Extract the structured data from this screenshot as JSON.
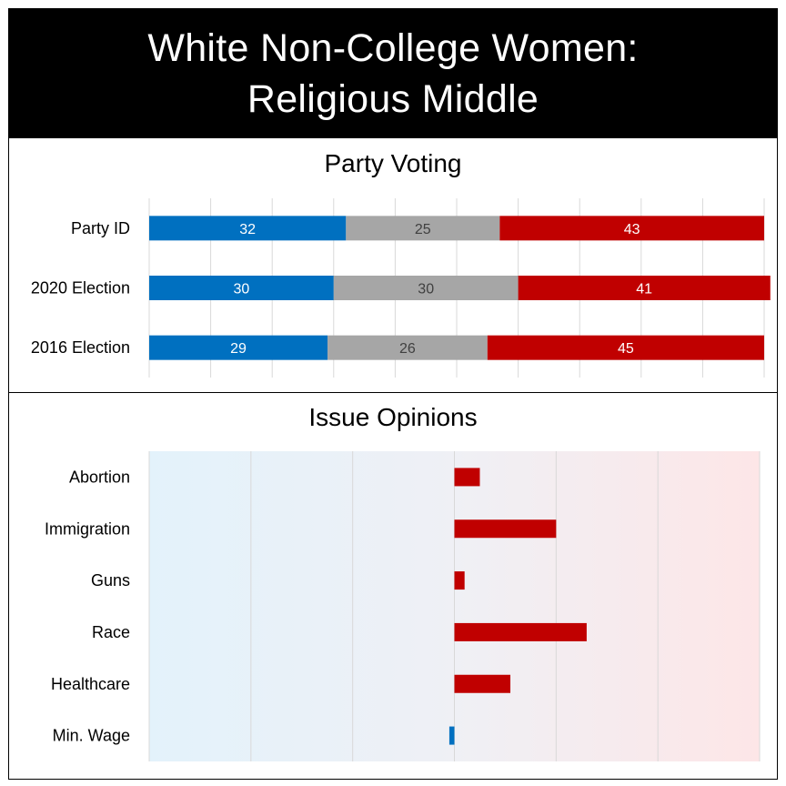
{
  "title": {
    "line1": "White Non-College Women:",
    "line2": "Religious Middle"
  },
  "colors": {
    "dem": "#0070c0",
    "ind": "#a6a6a6",
    "rep": "#c00000",
    "grid": "#d9d9d9",
    "bg_left": "#e3f2fb",
    "bg_mid": "#eff0f5",
    "bg_right": "#fde6e7"
  },
  "chart_data": [
    {
      "type": "bar",
      "orientation": "horizontal",
      "stacked": true,
      "title": "Party Voting",
      "categories": [
        "Party ID",
        "2020 Election",
        "2016 Election"
      ],
      "series": [
        {
          "values": [
            32,
            30,
            29
          ],
          "color": "#0070c0"
        },
        {
          "values": [
            25,
            30,
            26
          ],
          "color": "#a6a6a6"
        },
        {
          "values": [
            43,
            41,
            45
          ],
          "color": "#c00000"
        }
      ],
      "xlim": [
        0,
        100
      ],
      "grid": true
    },
    {
      "type": "bar",
      "orientation": "horizontal",
      "title": "Issue Opinions",
      "categories": [
        "Abortion",
        "Immigration",
        "Guns",
        "Race",
        "Healthcare",
        "Min. Wage"
      ],
      "values": [
        0.25,
        1.0,
        0.1,
        1.3,
        0.55,
        -0.05
      ],
      "xlim": [
        -3,
        3
      ],
      "grid": true,
      "background": "gradient blue (left) to red (right)"
    }
  ]
}
